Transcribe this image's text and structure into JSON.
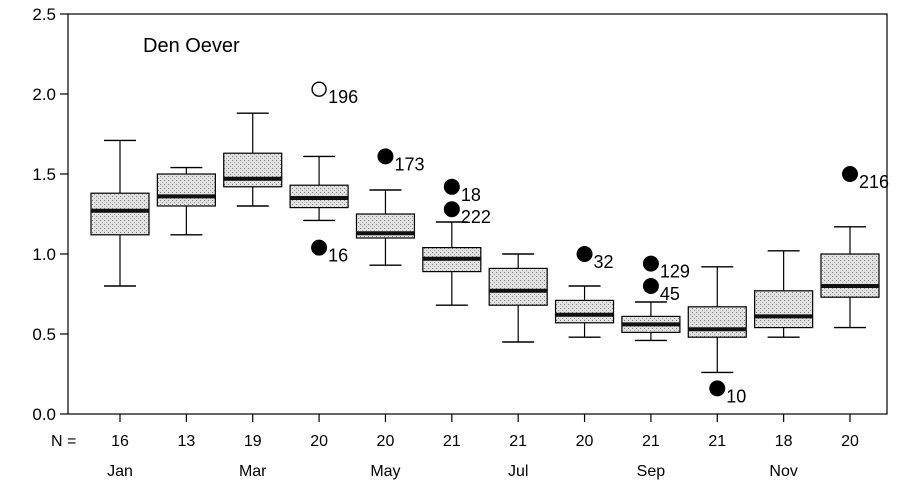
{
  "chart_data": {
    "type": "boxplot",
    "title": "Den Oever",
    "xlabel": "",
    "ylabel": "",
    "ylim": [
      0.0,
      2.5
    ],
    "yticks": [
      {
        "value": 0.0,
        "label": "0.0"
      },
      {
        "value": 0.5,
        "label": "0.5"
      },
      {
        "value": 1.0,
        "label": "1.0"
      },
      {
        "value": 1.5,
        "label": "1.5"
      },
      {
        "value": 2.0,
        "label": "2.0"
      },
      {
        "value": 2.5,
        "label": "2.5"
      }
    ],
    "n_label": "N =",
    "grid": false,
    "boxes": [
      {
        "n": "16",
        "month": "Jan",
        "whisker_low": 0.8,
        "q1": 1.12,
        "median": 1.27,
        "q3": 1.38,
        "whisker_high": 1.71
      },
      {
        "n": "13",
        "month": "",
        "whisker_low": 1.12,
        "q1": 1.3,
        "median": 1.36,
        "q3": 1.5,
        "whisker_high": 1.54
      },
      {
        "n": "19",
        "month": "Mar",
        "whisker_low": 1.3,
        "q1": 1.42,
        "median": 1.47,
        "q3": 1.63,
        "whisker_high": 1.88
      },
      {
        "n": "20",
        "month": "",
        "whisker_low": 1.21,
        "q1": 1.29,
        "median": 1.35,
        "q3": 1.43,
        "whisker_high": 1.61
      },
      {
        "n": "20",
        "month": "May",
        "whisker_low": 0.93,
        "q1": 1.1,
        "median": 1.13,
        "q3": 1.25,
        "whisker_high": 1.4
      },
      {
        "n": "21",
        "month": "",
        "whisker_low": 0.68,
        "q1": 0.89,
        "median": 0.97,
        "q3": 1.04,
        "whisker_high": 1.2
      },
      {
        "n": "21",
        "month": "Jul",
        "whisker_low": 0.45,
        "q1": 0.68,
        "median": 0.77,
        "q3": 0.91,
        "whisker_high": 1.0
      },
      {
        "n": "20",
        "month": "",
        "whisker_low": 0.48,
        "q1": 0.57,
        "median": 0.62,
        "q3": 0.71,
        "whisker_high": 0.8
      },
      {
        "n": "21",
        "month": "Sep",
        "whisker_low": 0.46,
        "q1": 0.51,
        "median": 0.56,
        "q3": 0.61,
        "whisker_high": 0.7
      },
      {
        "n": "21",
        "month": "",
        "whisker_low": 0.26,
        "q1": 0.48,
        "median": 0.53,
        "q3": 0.67,
        "whisker_high": 0.92
      },
      {
        "n": "18",
        "month": "Nov",
        "whisker_low": 0.48,
        "q1": 0.54,
        "median": 0.61,
        "q3": 0.77,
        "whisker_high": 1.02
      },
      {
        "n": "20",
        "month": "",
        "whisker_low": 0.54,
        "q1": 0.73,
        "median": 0.8,
        "q3": 1.0,
        "whisker_high": 1.17
      }
    ],
    "outliers": [
      {
        "box": 3,
        "value": 2.03,
        "label": "196",
        "kind": "open"
      },
      {
        "box": 3,
        "value": 1.04,
        "label": "16",
        "kind": "filled"
      },
      {
        "box": 4,
        "value": 1.61,
        "label": "173",
        "kind": "filled"
      },
      {
        "box": 5,
        "value": 1.42,
        "label": "18",
        "kind": "filled"
      },
      {
        "box": 5,
        "value": 1.28,
        "label": "222",
        "kind": "filled"
      },
      {
        "box": 7,
        "value": 1.0,
        "label": "32",
        "kind": "filled"
      },
      {
        "box": 8,
        "value": 0.94,
        "label": "129",
        "kind": "filled"
      },
      {
        "box": 8,
        "value": 0.8,
        "label": "45",
        "kind": "filled"
      },
      {
        "box": 9,
        "value": 0.16,
        "label": "10",
        "kind": "filled"
      },
      {
        "box": 11,
        "value": 1.5,
        "label": "216",
        "kind": "filled"
      }
    ],
    "colors": {
      "box_fill": "#d4d4d4",
      "median": "#111111",
      "line": "#000000"
    }
  }
}
